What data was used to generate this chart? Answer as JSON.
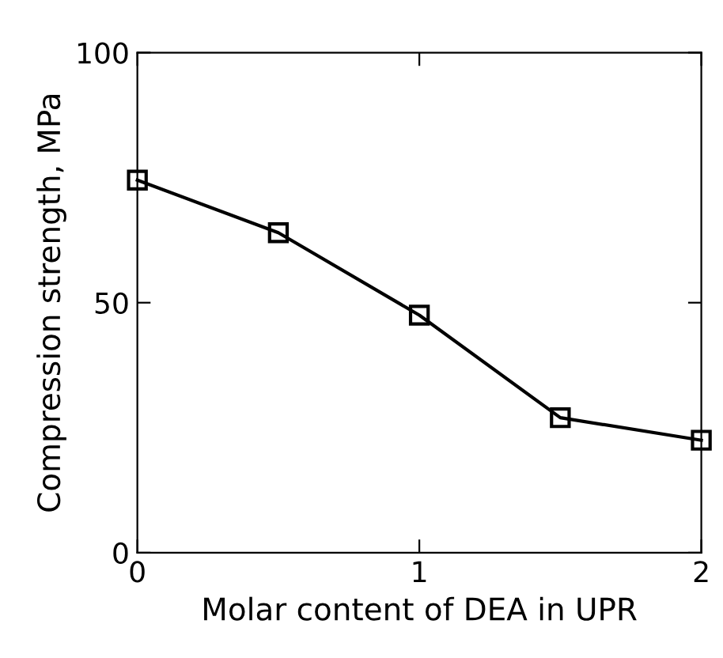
{
  "chart_data": {
    "type": "line",
    "xlabel": "Molar content of DEA in UPR",
    "ylabel": "Compression strength, MPa",
    "x": [
      0,
      0.5,
      1,
      1.5,
      2
    ],
    "series": [
      {
        "color": "#000000",
        "values": [
          74.5,
          64,
          47.5,
          27,
          22.5
        ]
      }
    ],
    "xlim": [
      0,
      2
    ],
    "xticks": [
      0,
      1,
      2
    ],
    "ylim": [
      0,
      100
    ],
    "yticks": [
      0,
      50,
      100
    ],
    "marker": "square",
    "line_style": "solid",
    "grid": false,
    "legend": false
  }
}
